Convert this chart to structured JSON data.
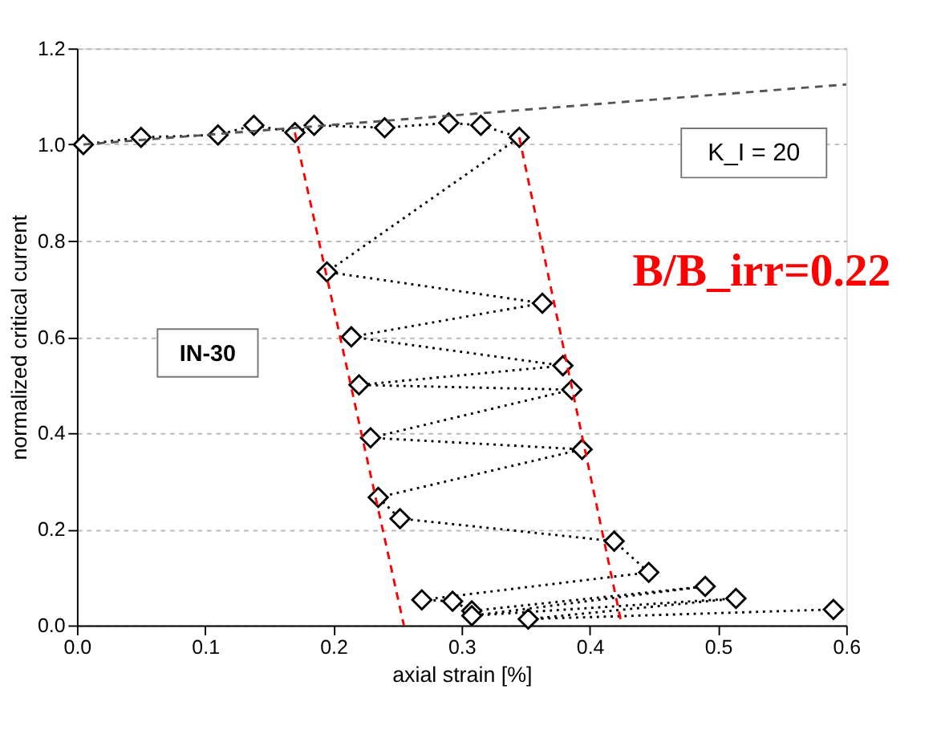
{
  "chart_data": {
    "type": "line",
    "xlabel": "axial strain [%]",
    "ylabel": "normalized critical current",
    "xlim": [
      0,
      0.6
    ],
    "xticks": [
      {
        "value": 0,
        "label": "0.0"
      },
      0.1,
      0.2,
      0.3,
      0.4,
      0.5,
      0.6
    ],
    "ylim": [
      0,
      1.2
    ],
    "yticks": [
      {
        "value": 0,
        "label": "0.0"
      },
      0.2,
      0.4,
      0.6,
      0.8,
      {
        "value": 1,
        "label": "1.0"
      },
      1.2
    ],
    "grid": "y",
    "series": [
      {
        "color": "#000000",
        "marker": "diamond",
        "line_style": "dotted",
        "x": [
          0.005,
          0.05,
          0.11,
          0.138,
          0.17,
          0.185,
          0.24,
          0.29,
          0.315,
          0.345,
          0.195,
          0.363,
          0.214,
          0.379,
          0.22,
          0.386,
          0.229,
          0.394,
          0.235,
          0.252,
          0.419,
          0.446,
          0.269,
          0.293,
          0.308,
          0.49,
          0.308,
          0.514,
          0.352,
          0.59
        ],
        "values": [
          1.0,
          1.015,
          1.02,
          1.04,
          1.025,
          1.04,
          1.035,
          1.045,
          1.04,
          1.015,
          0.735,
          0.67,
          0.6,
          0.54,
          0.5,
          0.49,
          0.39,
          0.366,
          0.266,
          0.222,
          0.175,
          0.11,
          0.053,
          0.05,
          0.03,
          0.081,
          0.02,
          0.056,
          0.013,
          0.033
        ]
      },
      {
        "color": "#555555",
        "marker": "none",
        "line_style": "dashed",
        "x": [
          0.005,
          0.6
        ],
        "values": [
          1.0,
          1.125
        ]
      },
      {
        "color": "#ff0000",
        "marker": "none",
        "line_style": "dashed",
        "x": [
          0.17,
          0.255
        ],
        "values": [
          1.025,
          0.0
        ]
      },
      {
        "color": "#ff0000",
        "marker": "none",
        "line_style": "dashed",
        "x": [
          0.345,
          0.425
        ],
        "values": [
          1.015,
          0.0
        ]
      }
    ],
    "annotations": [
      "K_I = 20",
      "IN-30",
      "B/B_irr=0.22"
    ]
  }
}
